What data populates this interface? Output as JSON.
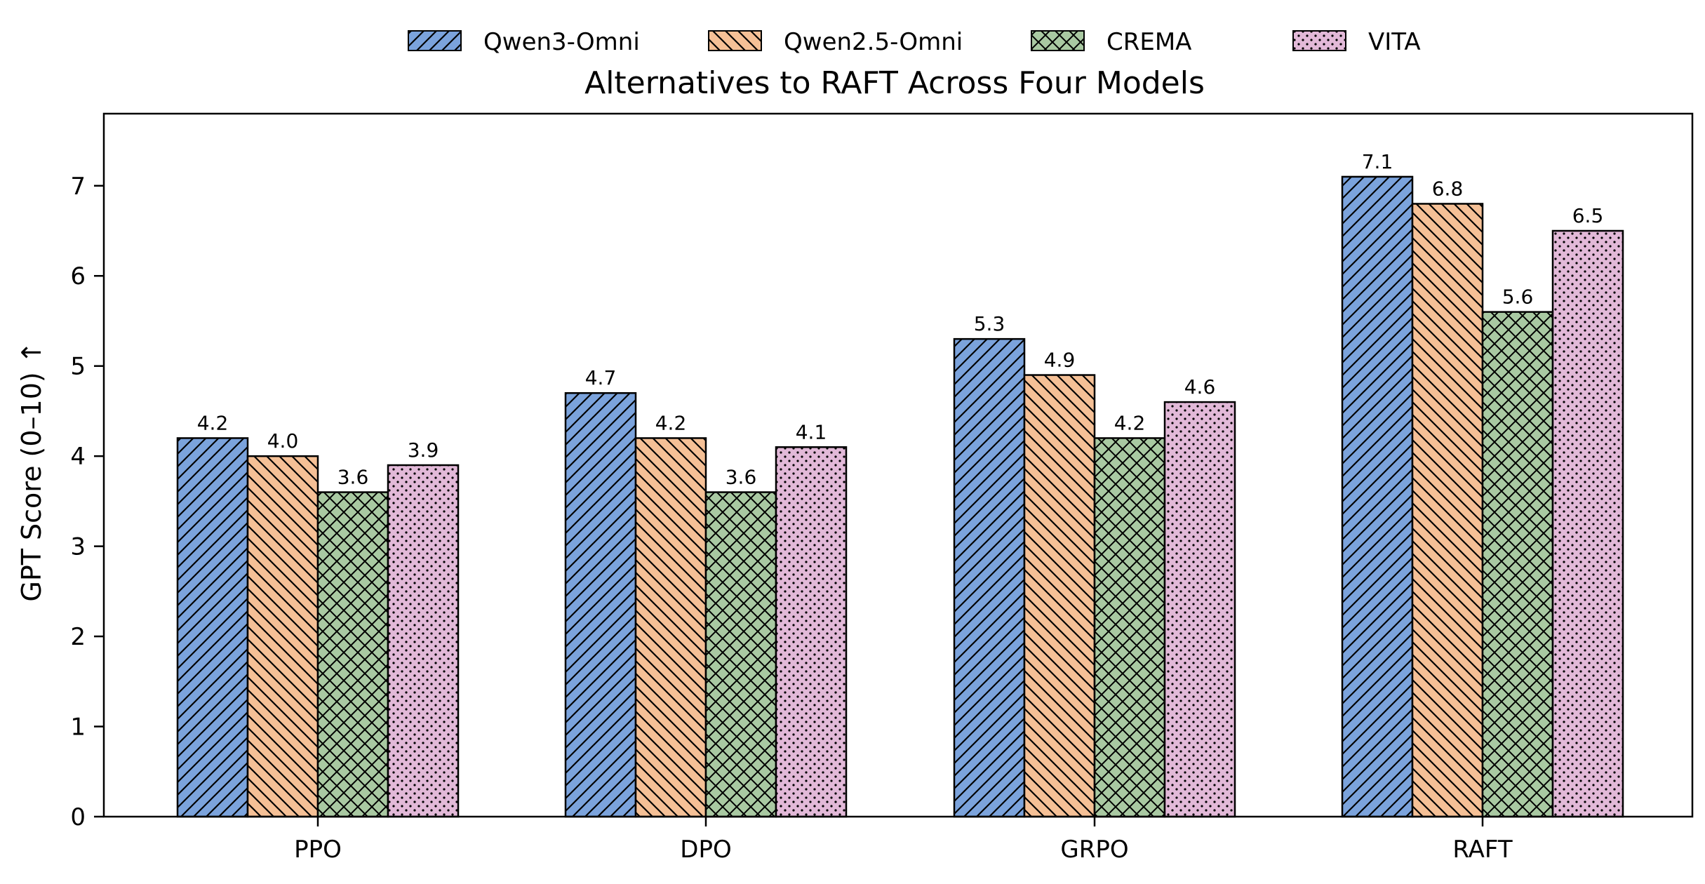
{
  "chart_data": {
    "type": "bar",
    "title": "Alternatives to RAFT Across Four Models",
    "xlabel": "",
    "ylabel": "GPT Score (0–10) ↑",
    "ylim": [
      0,
      7.8
    ],
    "yticks": [
      0,
      1,
      2,
      3,
      4,
      5,
      6,
      7
    ],
    "grid": false,
    "legend_position": "top-center",
    "categories": [
      "PPO",
      "DPO",
      "GRPO",
      "RAFT"
    ],
    "series": [
      {
        "name": "Qwen3-Omni",
        "color": "#7ba3dc",
        "hatch": "diagonal-forward",
        "values": [
          4.2,
          4.7,
          5.3,
          7.1
        ],
        "labels": [
          "4.2",
          "4.7",
          "5.3",
          "7.1"
        ]
      },
      {
        "name": "Qwen2.5-Omni",
        "color": "#f5c096",
        "hatch": "diagonal-back",
        "values": [
          4.0,
          4.2,
          4.9,
          6.8
        ],
        "labels": [
          "4.0",
          "4.2",
          "4.9",
          "6.8"
        ]
      },
      {
        "name": "CREMA",
        "color": "#a9c9a2",
        "hatch": "crosshatch",
        "values": [
          3.6,
          3.6,
          4.2,
          5.6
        ],
        "labels": [
          "3.6",
          "3.6",
          "4.2",
          "5.6"
        ]
      },
      {
        "name": "VITA",
        "color": "#e2b9d8",
        "hatch": "dots",
        "values": [
          3.9,
          4.1,
          4.6,
          6.5
        ],
        "labels": [
          "3.9",
          "4.1",
          "4.6",
          "6.5"
        ]
      }
    ]
  }
}
